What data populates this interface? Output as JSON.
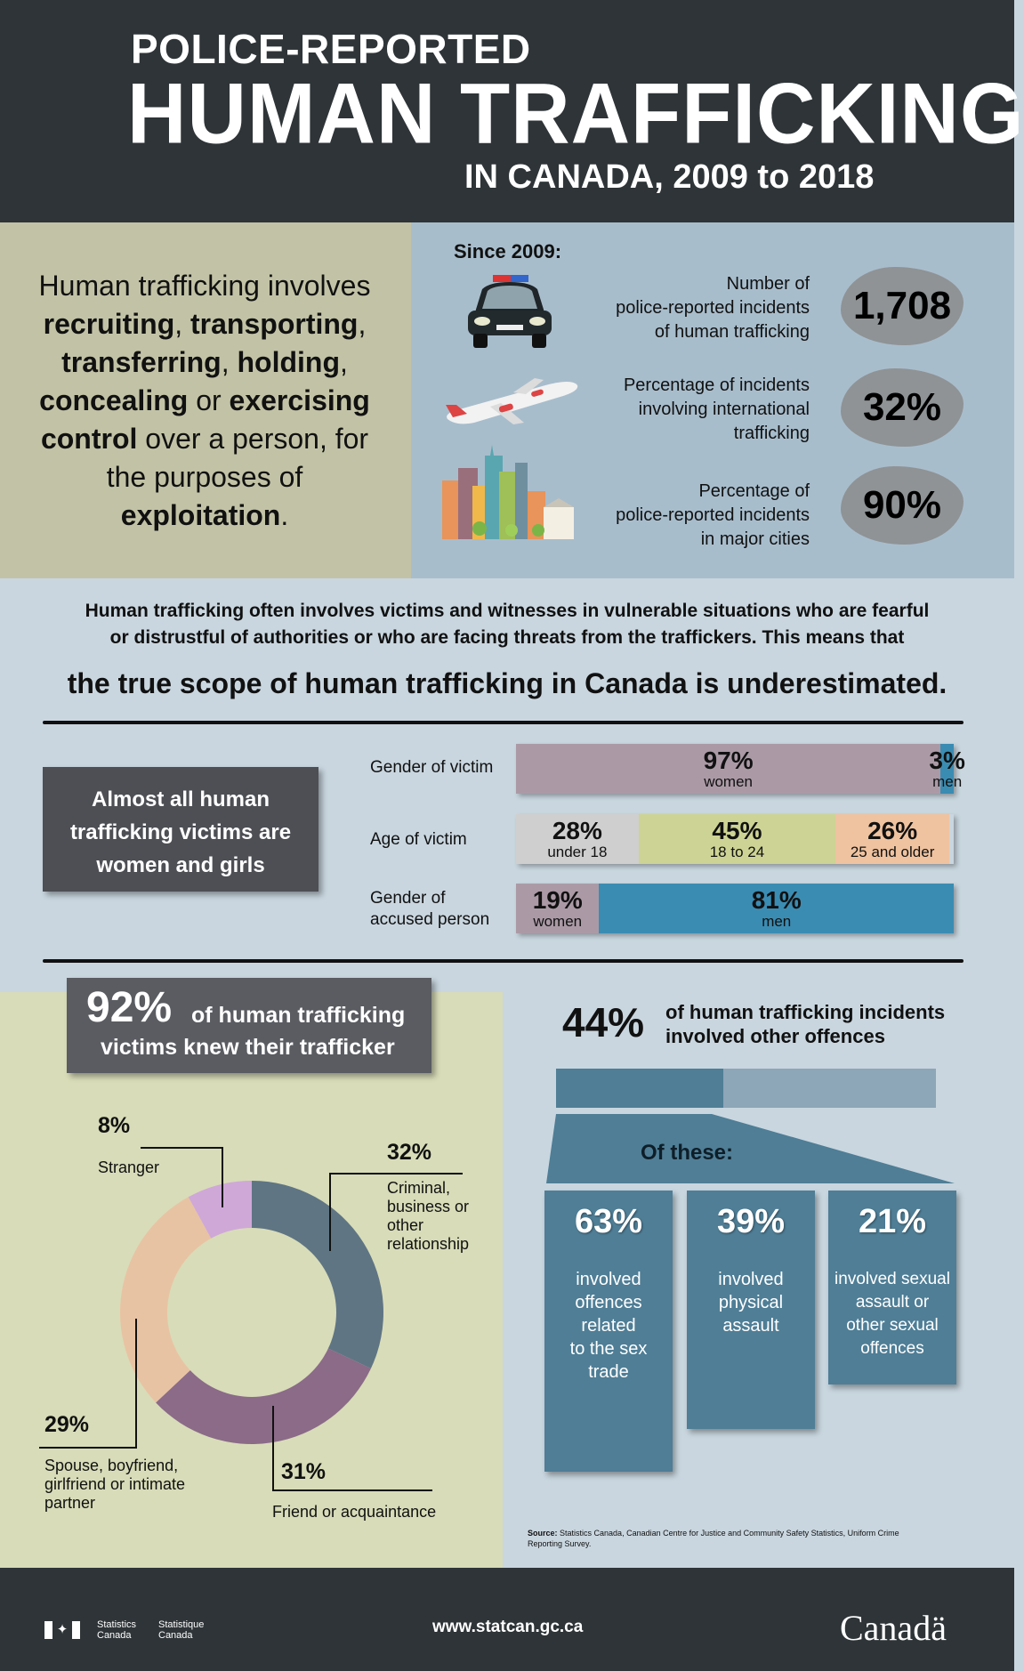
{
  "header": {
    "line1": "POLICE-REPORTED",
    "line2": "HUMAN TRAFFICKING",
    "line3": "IN CANADA, 2009 to 2018"
  },
  "definition": {
    "p1": "Human trafficking involves",
    "w1": "recruiting",
    "s1": ", ",
    "w2": "transporting",
    "s2": ",",
    "w3": "transferring",
    "s3": ", ",
    "w4": "holding",
    "s4": ",",
    "w5": "concealing",
    "s5": " or ",
    "w6": "exercising",
    "w7": "control",
    "s7": " over a person, for",
    "p2": "the purposes of",
    "w8": "exploitation",
    "s8": "."
  },
  "since": {
    "title": "Since 2009:",
    "stats": [
      {
        "label_lines": [
          "Number of",
          "police-reported incidents",
          "of human trafficking"
        ],
        "value": "1,708",
        "icon": "police-car-icon"
      },
      {
        "label_lines": [
          "Percentage of incidents",
          "involving international",
          "trafficking"
        ],
        "value": "32%",
        "icon": "airplane-icon"
      },
      {
        "label_lines": [
          "Percentage of",
          "police-reported incidents",
          "in major cities"
        ],
        "value": "90%",
        "icon": "city-skyline-icon"
      }
    ]
  },
  "scope": {
    "line1": "Human trafficking often involves victims and witnesses in vulnerable situations who are fearful",
    "line2": "or distrustful of authorities or who are facing threats from the traffickers. This means that",
    "emphasis": "the true scope of human trafficking in Canada is underestimated."
  },
  "victims": {
    "callout_lines": [
      "Almost all human",
      "trafficking victims are",
      "women and girls"
    ],
    "rows": [
      {
        "label_lines": [
          "Gender of victim"
        ],
        "segments": [
          {
            "pct": "97%",
            "label": "women",
            "value": 97,
            "color": "#ab9aa6",
            "text_color": "#111"
          },
          {
            "pct": "3%",
            "label": "men",
            "value": 3,
            "color": "#3b8cb2",
            "text_color": "#111"
          }
        ]
      },
      {
        "label_lines": [
          "Age of victim"
        ],
        "segments": [
          {
            "pct": "28%",
            "label": "under 18",
            "value": 28,
            "color": "#cfcfcf",
            "text_color": "#111"
          },
          {
            "pct": "45%",
            "label": "18 to 24",
            "value": 45,
            "color": "#cdd394",
            "text_color": "#111"
          },
          {
            "pct": "26%",
            "label": "25 and older",
            "value": 26,
            "color": "#efc3a0",
            "text_color": "#111"
          }
        ]
      },
      {
        "label_lines": [
          "Gender of",
          "accused person"
        ],
        "segments": [
          {
            "pct": "19%",
            "label": "women",
            "value": 19,
            "color": "#ab9aa6",
            "text_color": "#111"
          },
          {
            "pct": "81%",
            "label": "men",
            "value": 81,
            "color": "#3b8cb2",
            "text_color": "#111"
          }
        ]
      }
    ]
  },
  "relationship": {
    "pct": "92%",
    "text1": "of human trafficking",
    "text2": "victims knew their trafficker",
    "slices": [
      {
        "pct": "32%",
        "label_lines": [
          "Criminal,",
          "business or",
          "other",
          "relationship"
        ],
        "value": 32,
        "color": "#5f7584"
      },
      {
        "pct": "31%",
        "label_lines": [
          "Friend or acquaintance"
        ],
        "value": 31,
        "color": "#8b6b88"
      },
      {
        "pct": "29%",
        "label_lines": [
          "Spouse, boyfriend,",
          "girlfriend or intimate",
          "partner"
        ],
        "value": 29,
        "color": "#e8c3a3"
      },
      {
        "pct": "8%",
        "label_lines": [
          "Stranger"
        ],
        "value": 8,
        "color": "#cfa8d8"
      }
    ]
  },
  "offences": {
    "pct": "44%",
    "text_lines": [
      "of human trafficking incidents",
      "involved other offences"
    ],
    "share": 44,
    "of_these": "Of these:",
    "cards": [
      {
        "pct": "63%",
        "text_lines": [
          "involved",
          "offences",
          "related",
          "to the sex",
          "trade"
        ]
      },
      {
        "pct": "39%",
        "text_lines": [
          "involved",
          "physical",
          "assault"
        ]
      },
      {
        "pct": "21%",
        "text_lines": [
          "involved sexual",
          "assault or",
          "other sexual",
          "offences"
        ]
      }
    ]
  },
  "source": {
    "label": "Source:",
    "text": "Statistics Canada, Canadian Centre for Justice and Community Safety Statistics, Uniform Crime Reporting Survey."
  },
  "footer": {
    "stat_en_1": "Statistics",
    "stat_en_2": "Canada",
    "stat_fr_1": "Statistique",
    "stat_fr_2": "Canada",
    "url": "www.statcan.gc.ca",
    "wordmark": "Canadä"
  }
}
